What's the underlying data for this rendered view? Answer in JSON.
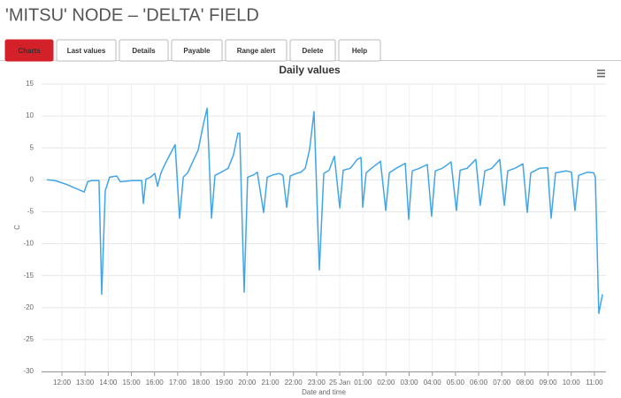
{
  "header": {
    "title": "'MITSU' NODE – 'DELTA' FIELD"
  },
  "tabs": [
    "Charts",
    "Last values",
    "Details",
    "Payable",
    "Range alert",
    "Delete",
    "Help"
  ],
  "chart_data": {
    "type": "line",
    "title": "Daily values",
    "y_label": "C",
    "x_label": "Date and time",
    "color": "#42a5e8",
    "grid": true,
    "x": [
      11.35,
      11.69,
      12.19,
      12.96,
      13.11,
      13.3,
      13.6,
      13.72,
      13.87,
      14.06,
      14.37,
      14.52,
      15.06,
      15.44,
      15.52,
      15.63,
      15.82,
      16.01,
      16.13,
      16.28,
      16.47,
      16.7,
      16.89,
      17.08,
      17.24,
      17.43,
      17.66,
      17.88,
      18.11,
      18.27,
      18.46,
      18.61,
      18.88,
      19.18,
      19.41,
      19.6,
      19.68,
      19.87,
      20.02,
      20.29,
      20.44,
      20.71,
      20.87,
      21.13,
      21.4,
      21.55,
      21.71,
      21.86,
      22.13,
      22.32,
      22.51,
      22.7,
      22.89,
      23.12,
      23.31,
      23.54,
      23.77,
      24.0,
      24.15,
      24.46,
      24.76,
      24.92,
      24.99,
      25.14,
      25.37,
      25.76,
      25.99,
      26.14,
      26.44,
      26.83,
      26.98,
      27.13,
      27.44,
      27.78,
      27.97,
      28.13,
      28.43,
      28.81,
      29.04,
      29.2,
      29.5,
      29.88,
      30.07,
      30.27,
      30.57,
      30.91,
      31.11,
      31.26,
      31.56,
      31.91,
      32.1,
      32.25,
      32.63,
      32.98,
      33.13,
      33.32,
      33.78,
      34.01,
      34.16,
      34.32,
      34.7,
      34.97,
      35.04,
      35.19,
      35.35
    ],
    "values": [
      0,
      -0.1,
      -0.7,
      -1.9,
      -0.3,
      -0.1,
      -0.1,
      -17.9,
      -1.7,
      0.4,
      0.6,
      -0.3,
      -0.1,
      -0.1,
      -3.7,
      0.1,
      0.4,
      1.0,
      -1.0,
      1.1,
      2.6,
      4.2,
      5.5,
      -6.0,
      0.4,
      1.1,
      2.9,
      4.6,
      8.7,
      11.2,
      -6.0,
      0.7,
      1.2,
      1.8,
      3.9,
      7.3,
      7.3,
      -17.6,
      0.4,
      0.8,
      1.2,
      -5.1,
      0.4,
      0.8,
      1.0,
      0.7,
      -4.3,
      0.6,
      1.0,
      1.2,
      1.8,
      4.8,
      10.7,
      -14.1,
      1.0,
      1.5,
      3.7,
      -4.4,
      1.5,
      1.8,
      3.2,
      3.5,
      -4.3,
      1.1,
      1.8,
      2.9,
      -4.8,
      1.1,
      1.8,
      2.6,
      -6.2,
      1.4,
      1.8,
      2.4,
      -5.7,
      1.4,
      1.8,
      2.8,
      -4.8,
      1.5,
      1.8,
      3.2,
      -4.0,
      1.4,
      1.8,
      3.2,
      -4.0,
      1.4,
      1.8,
      2.5,
      -5.1,
      1.1,
      1.8,
      1.9,
      -6.0,
      1.1,
      1.4,
      1.2,
      -4.8,
      0.7,
      1.2,
      1.1,
      0.4,
      -20.9,
      -17.9
    ],
    "xlim": [
      11.12,
      35.5
    ],
    "xticks": [
      {
        "value": 12,
        "label": "12:00"
      },
      {
        "value": 13,
        "label": "13:00"
      },
      {
        "value": 14,
        "label": "14:00"
      },
      {
        "value": 15,
        "label": "15:00"
      },
      {
        "value": 16,
        "label": "16:00"
      },
      {
        "value": 17,
        "label": "17:00"
      },
      {
        "value": 18,
        "label": "18:00"
      },
      {
        "value": 19,
        "label": "19:00"
      },
      {
        "value": 20,
        "label": "20:00"
      },
      {
        "value": 21,
        "label": "21:00"
      },
      {
        "value": 22,
        "label": "22:00"
      },
      {
        "value": 23,
        "label": "23:00"
      },
      {
        "value": 24,
        "label": "25 Jan"
      },
      {
        "value": 25,
        "label": "01:00"
      },
      {
        "value": 26,
        "label": "02:00"
      },
      {
        "value": 27,
        "label": "03:00"
      },
      {
        "value": 28,
        "label": "04:00"
      },
      {
        "value": 29,
        "label": "05:00"
      },
      {
        "value": 30,
        "label": "06:00"
      },
      {
        "value": 31,
        "label": "07:00"
      },
      {
        "value": 32,
        "label": "08:00"
      },
      {
        "value": 33,
        "label": "09:00"
      },
      {
        "value": 34,
        "label": "10:00"
      },
      {
        "value": 35,
        "label": "11:00"
      }
    ],
    "ylim": [
      -30,
      15
    ],
    "yticks": [
      -30,
      -25,
      -20,
      -15,
      -10,
      -5,
      0,
      5,
      10,
      15
    ]
  }
}
